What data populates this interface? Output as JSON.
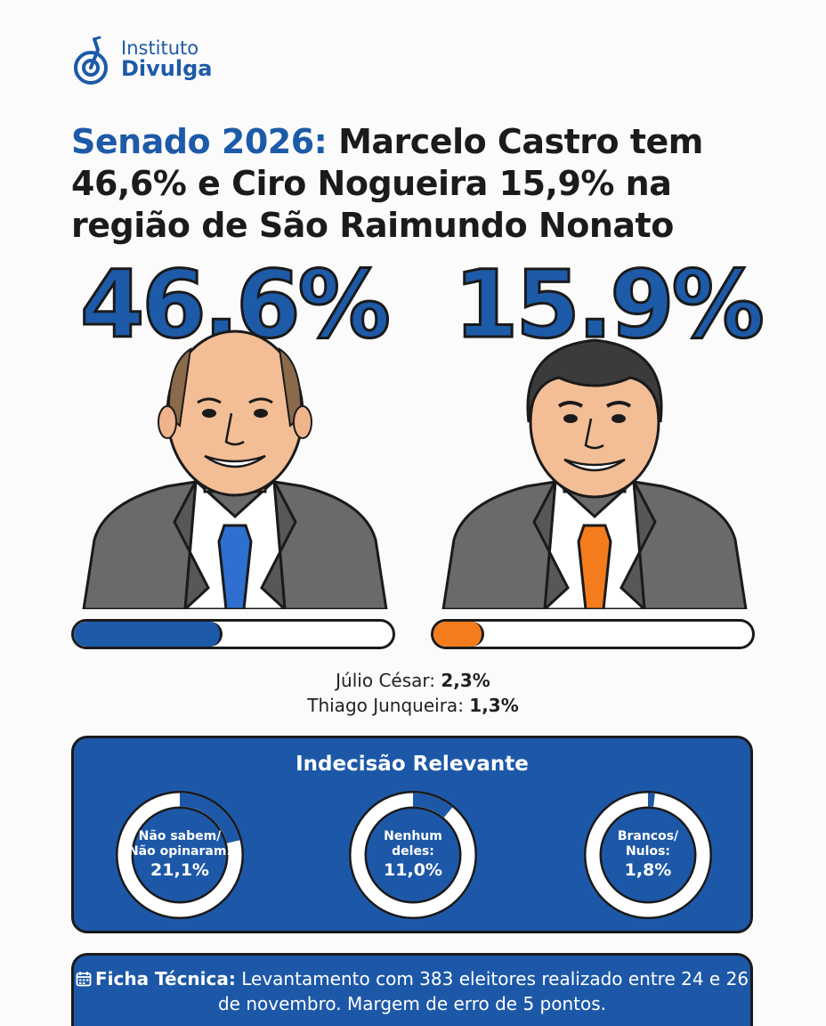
{
  "brand": {
    "line1": "Instituto",
    "line2": "Divulga",
    "icon": "target-logo-icon"
  },
  "headline": {
    "accent": "Senado 2026:",
    "rest": " Marcelo Castro tem 46,6% e Ciro Nogueira 15,9% na região de São Raimundo Nonato"
  },
  "candidates": [
    {
      "big_pct": "46.6%",
      "share": 0.466,
      "tie_color": "#2e6fd0",
      "icon": "candidate-portrait-blue-tie"
    },
    {
      "big_pct": "15.9%",
      "share": 0.159,
      "tie_color": "#f47c1c",
      "icon": "candidate-portrait-orange-tie"
    }
  ],
  "others": [
    {
      "name": "Júlio César: ",
      "value": "2,3%"
    },
    {
      "name": "Thiago Junqueira: ",
      "value": "1,3%"
    }
  ],
  "undecided": {
    "title": "Indecisão Relevante",
    "items": [
      {
        "line1": "Não sabem/",
        "line2": "Não opinaram:",
        "value": "21,1%",
        "share": 0.211
      },
      {
        "line1": "Nenhum",
        "line2": "deles:",
        "value": "11,0%",
        "share": 0.11
      },
      {
        "line1": "Brancos/",
        "line2": "Nulos:",
        "value": "1,8%",
        "share": 0.018
      }
    ]
  },
  "ficha": {
    "label": "Ficha Técnica:",
    "text": " Levantamento com 383 eleitores realizado entre 24 e 26 de novembro. Margem de erro de 5 pontos.",
    "icon": "calendar-icon"
  },
  "colors": {
    "blue": "#1d5aa8",
    "panel": "#1d58a8",
    "orange": "#f47c1c"
  }
}
